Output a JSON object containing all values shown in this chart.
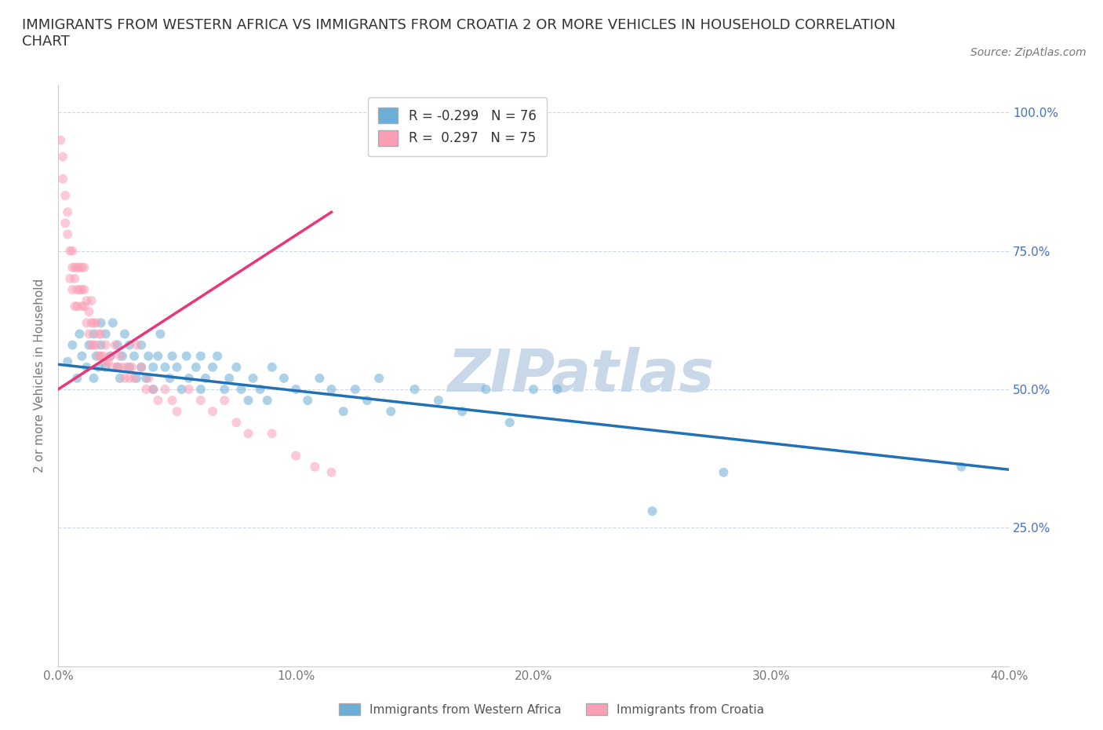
{
  "title": "IMMIGRANTS FROM WESTERN AFRICA VS IMMIGRANTS FROM CROATIA 2 OR MORE VEHICLES IN HOUSEHOLD CORRELATION\nCHART",
  "source_text": "Source: ZipAtlas.com",
  "ylabel": "2 or more Vehicles in Household",
  "xlim": [
    0.0,
    0.4
  ],
  "ylim": [
    0.0,
    1.05
  ],
  "xtick_labels": [
    "0.0%",
    "10.0%",
    "20.0%",
    "30.0%",
    "40.0%"
  ],
  "xtick_values": [
    0.0,
    0.1,
    0.2,
    0.3,
    0.4
  ],
  "ytick_labels": [
    "25.0%",
    "50.0%",
    "75.0%",
    "100.0%"
  ],
  "ytick_values": [
    0.25,
    0.5,
    0.75,
    1.0
  ],
  "blue_color": "#6baed6",
  "pink_color": "#fa9fb5",
  "blue_line_color": "#2171b5",
  "pink_line_color": "#e8367a",
  "watermark_text": "ZIPatlas",
  "watermark_color": "#c8d8e8",
  "legend_r_blue": "R = -0.299",
  "legend_n_blue": "N = 76",
  "legend_r_pink": "R =  0.297",
  "legend_n_pink": "N = 75",
  "legend_label_blue": "Immigrants from Western Africa",
  "legend_label_pink": "Immigrants from Croatia",
  "blue_scatter_x": [
    0.004,
    0.006,
    0.008,
    0.009,
    0.01,
    0.012,
    0.013,
    0.015,
    0.015,
    0.016,
    0.017,
    0.018,
    0.018,
    0.02,
    0.02,
    0.022,
    0.023,
    0.025,
    0.025,
    0.026,
    0.027,
    0.028,
    0.03,
    0.03,
    0.032,
    0.033,
    0.035,
    0.035,
    0.037,
    0.038,
    0.04,
    0.04,
    0.042,
    0.043,
    0.045,
    0.047,
    0.048,
    0.05,
    0.052,
    0.054,
    0.055,
    0.058,
    0.06,
    0.06,
    0.062,
    0.065,
    0.067,
    0.07,
    0.072,
    0.075,
    0.077,
    0.08,
    0.082,
    0.085,
    0.088,
    0.09,
    0.095,
    0.1,
    0.105,
    0.11,
    0.115,
    0.12,
    0.125,
    0.13,
    0.135,
    0.14,
    0.15,
    0.16,
    0.17,
    0.18,
    0.19,
    0.2,
    0.21,
    0.25,
    0.28,
    0.38
  ],
  "blue_scatter_y": [
    0.55,
    0.58,
    0.52,
    0.6,
    0.56,
    0.54,
    0.58,
    0.52,
    0.6,
    0.56,
    0.54,
    0.58,
    0.62,
    0.54,
    0.6,
    0.56,
    0.62,
    0.54,
    0.58,
    0.52,
    0.56,
    0.6,
    0.54,
    0.58,
    0.56,
    0.52,
    0.54,
    0.58,
    0.52,
    0.56,
    0.54,
    0.5,
    0.56,
    0.6,
    0.54,
    0.52,
    0.56,
    0.54,
    0.5,
    0.56,
    0.52,
    0.54,
    0.5,
    0.56,
    0.52,
    0.54,
    0.56,
    0.5,
    0.52,
    0.54,
    0.5,
    0.48,
    0.52,
    0.5,
    0.48,
    0.54,
    0.52,
    0.5,
    0.48,
    0.52,
    0.5,
    0.46,
    0.5,
    0.48,
    0.52,
    0.46,
    0.5,
    0.48,
    0.46,
    0.5,
    0.44,
    0.5,
    0.5,
    0.28,
    0.35,
    0.36
  ],
  "pink_scatter_x": [
    0.001,
    0.002,
    0.002,
    0.003,
    0.003,
    0.004,
    0.004,
    0.005,
    0.005,
    0.006,
    0.006,
    0.006,
    0.007,
    0.007,
    0.007,
    0.008,
    0.008,
    0.008,
    0.009,
    0.009,
    0.01,
    0.01,
    0.01,
    0.011,
    0.011,
    0.011,
    0.012,
    0.012,
    0.013,
    0.013,
    0.014,
    0.014,
    0.014,
    0.015,
    0.015,
    0.016,
    0.016,
    0.017,
    0.017,
    0.018,
    0.018,
    0.019,
    0.02,
    0.02,
    0.021,
    0.022,
    0.023,
    0.024,
    0.025,
    0.026,
    0.027,
    0.028,
    0.029,
    0.03,
    0.031,
    0.032,
    0.033,
    0.035,
    0.037,
    0.038,
    0.04,
    0.042,
    0.045,
    0.048,
    0.05,
    0.055,
    0.06,
    0.065,
    0.07,
    0.075,
    0.08,
    0.09,
    0.1,
    0.108,
    0.115
  ],
  "pink_scatter_y": [
    0.95,
    0.92,
    0.88,
    0.85,
    0.8,
    0.78,
    0.82,
    0.75,
    0.7,
    0.72,
    0.68,
    0.75,
    0.65,
    0.7,
    0.72,
    0.68,
    0.72,
    0.65,
    0.68,
    0.72,
    0.65,
    0.68,
    0.72,
    0.65,
    0.68,
    0.72,
    0.62,
    0.66,
    0.6,
    0.64,
    0.58,
    0.62,
    0.66,
    0.58,
    0.62,
    0.58,
    0.62,
    0.56,
    0.6,
    0.56,
    0.6,
    0.56,
    0.55,
    0.58,
    0.55,
    0.56,
    0.54,
    0.58,
    0.54,
    0.56,
    0.54,
    0.52,
    0.54,
    0.52,
    0.54,
    0.52,
    0.58,
    0.54,
    0.5,
    0.52,
    0.5,
    0.48,
    0.5,
    0.48,
    0.46,
    0.5,
    0.48,
    0.46,
    0.48,
    0.44,
    0.42,
    0.42,
    0.38,
    0.36,
    0.35
  ],
  "blue_trend_x": [
    0.0,
    0.4
  ],
  "blue_trend_y": [
    0.545,
    0.355
  ],
  "pink_trend_x": [
    0.0,
    0.115
  ],
  "pink_trend_y": [
    0.5,
    0.82
  ],
  "grid_color": "#d0d8e8",
  "background_color": "#ffffff",
  "marker_size": 75,
  "marker_alpha": 0.55,
  "figsize": [
    14.06,
    9.3
  ],
  "dpi": 100
}
